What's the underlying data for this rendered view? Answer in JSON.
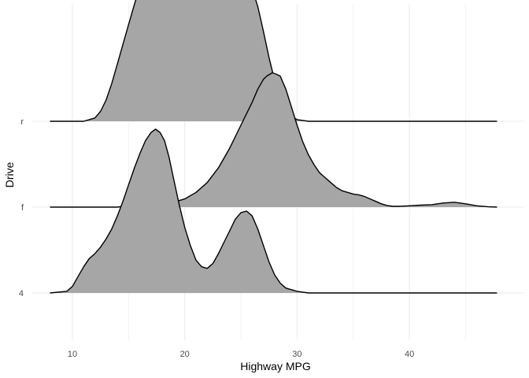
{
  "chart_data": {
    "type": "area",
    "subtype": "ridgeline density",
    "title": "",
    "xlabel": "Highway MPG",
    "ylabel": "Drive",
    "xlim": [
      8,
      47.8
    ],
    "x_ticks": [
      10,
      20,
      30,
      40
    ],
    "x_tick_labels": [
      "10",
      "20",
      "30",
      "40"
    ],
    "categories": [
      "4",
      "f",
      "r"
    ],
    "grid": true,
    "legend": "none",
    "fill_color": "#a6a6a6",
    "line_color": "#000000",
    "grid_color": "#ebebeb",
    "series": [
      {
        "name": "4",
        "points": [
          [
            8,
            0
          ],
          [
            9.5,
            0.01
          ],
          [
            10,
            0.04
          ],
          [
            10.5,
            0.1
          ],
          [
            11,
            0.16
          ],
          [
            11.5,
            0.21
          ],
          [
            12,
            0.24
          ],
          [
            12.5,
            0.28
          ],
          [
            13,
            0.33
          ],
          [
            13.5,
            0.39
          ],
          [
            14,
            0.47
          ],
          [
            14.5,
            0.56
          ],
          [
            15,
            0.66
          ],
          [
            15.5,
            0.76
          ],
          [
            16,
            0.85
          ],
          [
            16.5,
            0.93
          ],
          [
            17,
            0.98
          ],
          [
            17.4,
            1.0
          ],
          [
            17.8,
            0.98
          ],
          [
            18.2,
            0.93
          ],
          [
            18.6,
            0.83
          ],
          [
            19,
            0.7
          ],
          [
            19.5,
            0.54
          ],
          [
            20,
            0.4
          ],
          [
            20.5,
            0.29
          ],
          [
            21,
            0.2
          ],
          [
            21.5,
            0.16
          ],
          [
            22,
            0.15
          ],
          [
            22.5,
            0.18
          ],
          [
            23,
            0.24
          ],
          [
            23.5,
            0.31
          ],
          [
            24,
            0.38
          ],
          [
            24.5,
            0.45
          ],
          [
            25,
            0.49
          ],
          [
            25.5,
            0.5
          ],
          [
            26,
            0.47
          ],
          [
            26.5,
            0.39
          ],
          [
            27,
            0.29
          ],
          [
            27.5,
            0.19
          ],
          [
            28,
            0.11
          ],
          [
            28.5,
            0.06
          ],
          [
            29,
            0.03
          ],
          [
            30,
            0.01
          ],
          [
            31,
            0
          ],
          [
            47.8,
            0
          ]
        ]
      },
      {
        "name": "f",
        "points": [
          [
            8,
            0
          ],
          [
            13,
            0
          ],
          [
            14,
            0
          ],
          [
            15,
            0.01
          ],
          [
            16,
            0.01
          ],
          [
            17,
            0.01
          ],
          [
            18,
            0.02
          ],
          [
            19,
            0.03
          ],
          [
            20,
            0.05
          ],
          [
            21,
            0.09
          ],
          [
            22,
            0.15
          ],
          [
            23,
            0.24
          ],
          [
            24,
            0.36
          ],
          [
            25,
            0.5
          ],
          [
            26,
            0.64
          ],
          [
            26.5,
            0.72
          ],
          [
            27,
            0.78
          ],
          [
            27.3,
            0.8
          ],
          [
            27.8,
            0.82
          ],
          [
            28.2,
            0.81
          ],
          [
            28.5,
            0.8
          ],
          [
            29,
            0.72
          ],
          [
            29.5,
            0.61
          ],
          [
            30,
            0.5
          ],
          [
            30.5,
            0.4
          ],
          [
            31,
            0.32
          ],
          [
            31.5,
            0.26
          ],
          [
            32,
            0.21
          ],
          [
            32.5,
            0.18
          ],
          [
            33,
            0.15
          ],
          [
            33.5,
            0.12
          ],
          [
            34,
            0.1
          ],
          [
            34.5,
            0.09
          ],
          [
            35,
            0.08
          ],
          [
            35.5,
            0.075
          ],
          [
            36,
            0.065
          ],
          [
            36.5,
            0.05
          ],
          [
            37,
            0.035
          ],
          [
            37.5,
            0.02
          ],
          [
            38,
            0.01
          ],
          [
            38.5,
            0.005
          ],
          [
            39,
            0.005
          ],
          [
            40,
            0.008
          ],
          [
            41,
            0.012
          ],
          [
            42,
            0.015
          ],
          [
            43,
            0.025
          ],
          [
            44,
            0.03
          ],
          [
            45,
            0.02
          ],
          [
            46,
            0.008
          ],
          [
            47,
            0.002
          ],
          [
            47.8,
            0
          ]
        ]
      },
      {
        "name": "r",
        "points": [
          [
            8,
            0
          ],
          [
            11,
            0
          ],
          [
            11.5,
            0.01
          ],
          [
            12,
            0.02
          ],
          [
            12.5,
            0.06
          ],
          [
            13,
            0.13
          ],
          [
            13.5,
            0.23
          ],
          [
            14,
            0.35
          ],
          [
            14.5,
            0.47
          ],
          [
            15,
            0.59
          ],
          [
            15.5,
            0.71
          ],
          [
            16,
            0.82
          ],
          [
            16.5,
            0.92
          ],
          [
            17,
            0.98
          ],
          [
            17.3,
            1.0
          ],
          [
            17.6,
            0.99
          ],
          [
            18,
            0.95
          ],
          [
            18.5,
            0.88
          ],
          [
            19,
            0.81
          ],
          [
            19.5,
            0.77
          ],
          [
            20,
            0.76
          ],
          [
            20.5,
            0.76
          ],
          [
            21,
            0.77
          ],
          [
            21.5,
            0.78
          ],
          [
            22,
            0.8
          ],
          [
            22.5,
            0.82
          ],
          [
            23,
            0.84
          ],
          [
            23.5,
            0.87
          ],
          [
            24,
            0.9
          ],
          [
            24.5,
            0.93
          ],
          [
            25,
            0.92
          ],
          [
            25.5,
            0.88
          ],
          [
            26,
            0.81
          ],
          [
            26.5,
            0.7
          ],
          [
            27,
            0.55
          ],
          [
            27.5,
            0.39
          ],
          [
            28,
            0.25
          ],
          [
            28.5,
            0.14
          ],
          [
            29,
            0.07
          ],
          [
            29.5,
            0.03
          ],
          [
            30,
            0.01
          ],
          [
            31,
            0
          ],
          [
            47.8,
            0
          ]
        ]
      }
    ]
  }
}
